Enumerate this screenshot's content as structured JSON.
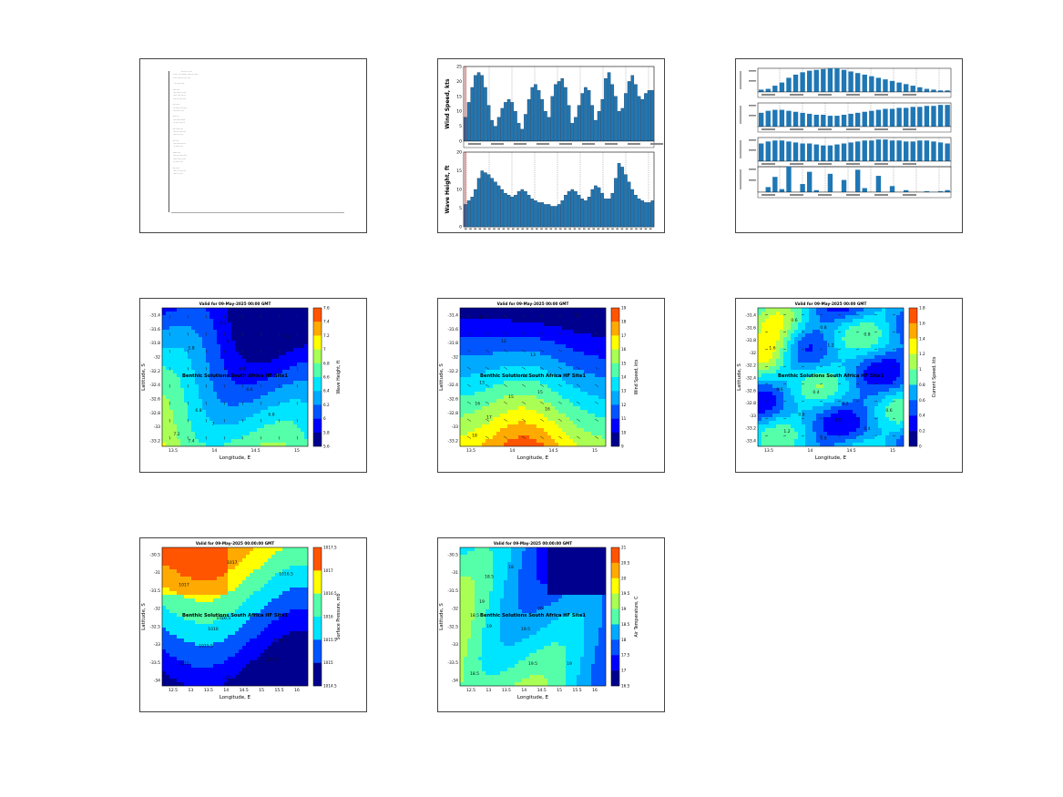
{
  "colors": {
    "bar": "#1f77b4",
    "colormap": [
      "#00008f",
      "#0000ff",
      "#0055ff",
      "#00aaff",
      "#00e5ff",
      "#55ffaa",
      "#aaff55",
      "#ffff00",
      "#ffaa00",
      "#ff5500"
    ]
  },
  "report": {
    "lines": [
      "             --- --- -- --",
      "  - ---- --- ------ ---- -- ----",
      "  - --- ---- -- --- ---",
      "",
      "    --- ---- ---",
      "",
      "  ---- ---",
      "   --- ---- -- ---",
      "   ---- --- --- --",
      "   --- -- ---- ---",
      "",
      "  --- ----",
      "   -- ---- --- ----",
      "   --- --- -- --",
      "",
      "  ---- --",
      "   --- ---- -----",
      "   -- --- ---- --",
      "",
      "  --- ---- ---",
      "   --- -- ---- ---",
      "   ---- -- ---",
      "",
      "  --- ---",
      "   --- ---- --- --",
      "   -- ---- ---",
      "",
      "  ----- ---",
      "   --- -- ---- ----",
      "   ---- --- -- ---",
      "   -- ---- ---",
      "",
      "  --- ----",
      "   --- -- ---- ---",
      "   ---- -- ---"
    ]
  },
  "chart_data": [
    {
      "type": "bar",
      "ylabel": "Wind Speed, kts",
      "ylim": [
        0,
        25
      ],
      "yticks": [
        0,
        5,
        10,
        15,
        20,
        25
      ],
      "values": [
        8,
        13,
        18,
        22,
        23,
        22,
        18,
        12,
        7,
        5,
        8,
        11,
        13,
        14,
        13,
        10,
        6,
        4,
        9,
        14,
        18,
        19,
        17,
        14,
        10,
        8,
        15,
        19,
        20,
        21,
        18,
        12,
        6,
        8,
        12,
        16,
        18,
        17,
        12,
        7,
        10,
        14,
        21,
        23,
        19,
        15,
        10,
        11,
        16,
        20,
        22,
        19,
        15,
        14,
        16,
        17,
        17
      ]
    },
    {
      "type": "bar",
      "ylabel": "Wave Height, ft",
      "ylim": [
        0,
        20
      ],
      "yticks": [
        0,
        5,
        10,
        15,
        20
      ],
      "values": [
        6,
        7,
        8,
        10,
        13,
        15,
        14.5,
        14,
        13,
        12,
        11,
        10,
        9,
        8.5,
        8,
        8.5,
        9.5,
        10,
        9.5,
        8.5,
        7.5,
        7,
        6.5,
        6.5,
        6,
        6,
        5.5,
        5.5,
        6,
        7,
        8.5,
        9.5,
        10,
        9.5,
        8.5,
        7.5,
        7,
        8,
        10,
        11,
        10.5,
        9,
        7.5,
        7.5,
        9,
        13,
        17,
        16,
        14,
        12,
        10,
        8.5,
        7.5,
        7,
        6.5,
        6.5,
        7
      ]
    },
    {
      "type": "bar",
      "values": [
        3,
        4,
        8,
        12,
        18,
        22,
        25,
        27,
        28,
        29,
        30,
        30,
        28,
        26,
        24,
        22,
        20,
        18,
        16,
        14,
        12,
        10,
        8,
        6,
        4,
        3,
        2,
        2
      ]
    },
    {
      "type": "bar",
      "values": [
        14,
        16,
        17,
        17,
        16,
        15,
        14,
        13,
        12,
        12,
        11,
        11,
        12,
        13,
        14,
        15,
        16,
        17,
        18,
        18,
        19,
        19,
        20,
        20,
        21,
        21,
        22,
        22
      ]
    },
    {
      "type": "bar",
      "values": [
        18,
        20,
        21,
        21,
        20,
        19,
        18,
        18,
        17,
        16,
        16,
        17,
        18,
        19,
        20,
        21,
        21,
        22,
        22,
        21,
        21,
        20,
        20,
        21,
        21,
        20,
        19,
        18
      ]
    },
    {
      "type": "bar",
      "values": [
        0,
        5,
        15,
        3,
        25,
        0,
        8,
        20,
        2,
        0,
        18,
        0,
        12,
        0,
        22,
        4,
        0,
        16,
        0,
        6,
        0,
        2,
        0,
        0,
        1,
        0,
        1,
        2
      ]
    }
  ],
  "contour_maps": [
    {
      "title": "Valid for 09-May-2025 00:00 GMT",
      "xlabel": "Longitude, E",
      "ylabel": "Latitude, S",
      "xticks": [
        "13.5",
        "14",
        "14.5",
        "15"
      ],
      "yticks": [
        "-31.4",
        "-31.6",
        "-31.8",
        "-32",
        "-32.2",
        "-32.4",
        "-32.6",
        "-32.8",
        "-33",
        "-33.2"
      ],
      "cbar_label": "Wave Height, ft",
      "cbar_ticks": [
        "5.6",
        "5.8",
        "6",
        "6.2",
        "6.4",
        "6.6",
        "6.8",
        "7",
        "7.2",
        "7.4",
        "7.6"
      ],
      "site_label": "Benthic Solutions South Africa HF Site1",
      "contour_labels": [
        "6.2",
        "6",
        "5.8",
        "6.4",
        "6.6",
        "6.8",
        "7",
        "7.2",
        "7.4",
        "7.6",
        "6.8"
      ]
    },
    {
      "title": "Valid for 09-May-2025 00:00 GMT",
      "xlabel": "Longitude, E",
      "ylabel": "Latitude, S",
      "xticks": [
        "13.5",
        "14",
        "14.5",
        "15"
      ],
      "yticks": [
        "-31.4",
        "-31.6",
        "-31.8",
        "-32",
        "-32.2",
        "-32.4",
        "-32.6",
        "-32.8",
        "-33",
        "-33.2"
      ],
      "cbar_label": "Wind Speed, kts",
      "cbar_ticks": [
        "9",
        "10",
        "11",
        "12",
        "13",
        "14",
        "15",
        "16",
        "17",
        "18",
        "19"
      ],
      "site_label": "Benthic Solutions South Africa HF Site1",
      "contour_labels": [
        "11",
        "12",
        "13",
        "14",
        "15",
        "16",
        "17",
        "18",
        "18",
        "13",
        "15",
        "16"
      ]
    },
    {
      "title": "Valid for 09-May-2025 00:00 GMT",
      "xlabel": "Longitude, E",
      "ylabel": "Latitude, S",
      "xticks": [
        "13.5",
        "14",
        "14.5",
        "15"
      ],
      "yticks": [
        "-31.4",
        "-31.6",
        "-31.8",
        "-32",
        "-32.2",
        "-32.4",
        "-32.6",
        "-32.8",
        "-33",
        "-33.2",
        "-33.4"
      ],
      "cbar_label": "Current Speed, kts",
      "cbar_ticks": [
        "0",
        "0.2",
        "0.4",
        "0.6",
        "0.8",
        "1",
        "1.2",
        "1.4",
        "1.6",
        "1.8"
      ],
      "site_label": "Benthic Solutions South Africa HF Site1",
      "contour_labels": [
        "0.6",
        "0.8",
        "1.6",
        "1.2",
        "0.8",
        "0.6",
        "0.4",
        "0.2",
        "1",
        "0.8",
        "0.6",
        "0.4",
        "1.2",
        "0.8",
        "0.6"
      ]
    },
    {
      "title": "Valid for 09-May-2025 00:00:00 GMT",
      "xlabel": "Longitude, E",
      "ylabel": "Latitude, S",
      "xticks": [
        "12.5",
        "13",
        "13.5",
        "14",
        "14.5",
        "15",
        "15.5",
        "16"
      ],
      "yticks": [
        "-30.5",
        "-31",
        "-31.5",
        "-32",
        "-32.5",
        "-33",
        "-33.5",
        "-34"
      ],
      "cbar_label": "Surface Pressure, mb",
      "cbar_ticks": [
        "1014.5",
        "1015",
        "1015.5",
        "1016",
        "1016.5",
        "1017",
        "1017.5"
      ],
      "site_label": "Benthic Solutions South Africa HF Site1",
      "contour_labels": [
        "1017",
        "1017",
        "1016.5",
        "1016.5",
        "1016",
        "1016",
        "1015.5",
        "1015.5",
        "1015",
        "1015"
      ]
    },
    {
      "title": "Valid for 09-May-2025 00:00:00 GMT",
      "xlabel": "Longitude, E",
      "ylabel": "Latitude, S",
      "xticks": [
        "12.5",
        "13",
        "13.5",
        "14",
        "14.5",
        "15",
        "15.5",
        "16"
      ],
      "yticks": [
        "-30.5",
        "-31",
        "-31.5",
        "-32",
        "-32.5",
        "-33",
        "-33.5",
        "-34"
      ],
      "cbar_label": "Air Temperature, C",
      "cbar_ticks": [
        "16.5",
        "17",
        "17.5",
        "18",
        "18.5",
        "19",
        "19.5",
        "20",
        "20.5",
        "21"
      ],
      "site_label": "Benthic Solutions South Africa HF Site1",
      "contour_labels": [
        "18.5",
        "18",
        "19",
        "18.5",
        "19",
        "19.5",
        "20",
        "19.5",
        "18.5",
        "19"
      ]
    }
  ]
}
